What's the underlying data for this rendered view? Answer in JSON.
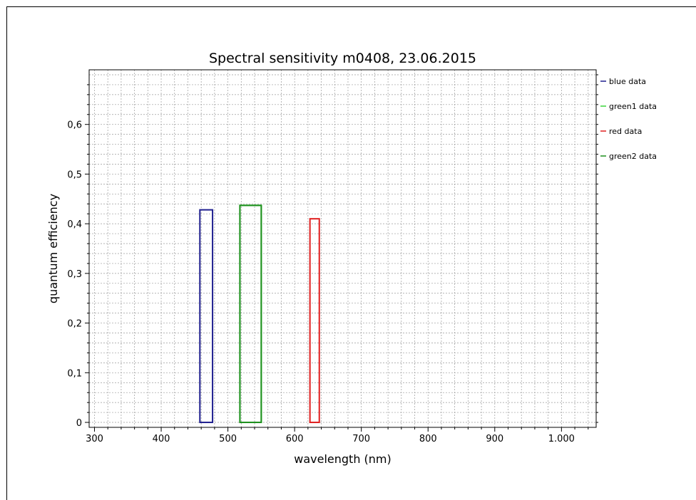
{
  "chart_data": {
    "type": "bar",
    "title": "Spectral sensitivity m0408, 23.06.2015",
    "xlabel": "wavelength (nm)",
    "ylabel": "quantum efficiency",
    "xlim": [
      292,
      1052
    ],
    "ylim": [
      -0.01,
      0.71
    ],
    "xticks": [
      300,
      400,
      500,
      600,
      700,
      800,
      900,
      1000
    ],
    "xtick_labels": [
      "300",
      "400",
      "500",
      "600",
      "700",
      "800",
      "900",
      "1.000"
    ],
    "yticks": [
      0,
      0.1,
      0.2,
      0.3,
      0.4,
      0.5,
      0.6
    ],
    "ytick_labels": [
      "0",
      "0,1",
      "0,2",
      "0,3",
      "0,4",
      "0,5",
      "0,6"
    ],
    "grid": true,
    "legend_position": "right",
    "series": [
      {
        "name": "blue data",
        "color": "#1f1f8f",
        "x_start": 458,
        "x_end": 477,
        "value": 0.428
      },
      {
        "name": "green1 data",
        "color": "#3ad43a",
        "x_start": 518,
        "x_end": 550,
        "value": 0.437
      },
      {
        "name": "red data",
        "color": "#e02020",
        "x_start": 623,
        "x_end": 637,
        "value": 0.41
      },
      {
        "name": "green2 data",
        "color": "#1e8f1e",
        "x_start": 518,
        "x_end": 550,
        "value": 0.437
      }
    ]
  }
}
